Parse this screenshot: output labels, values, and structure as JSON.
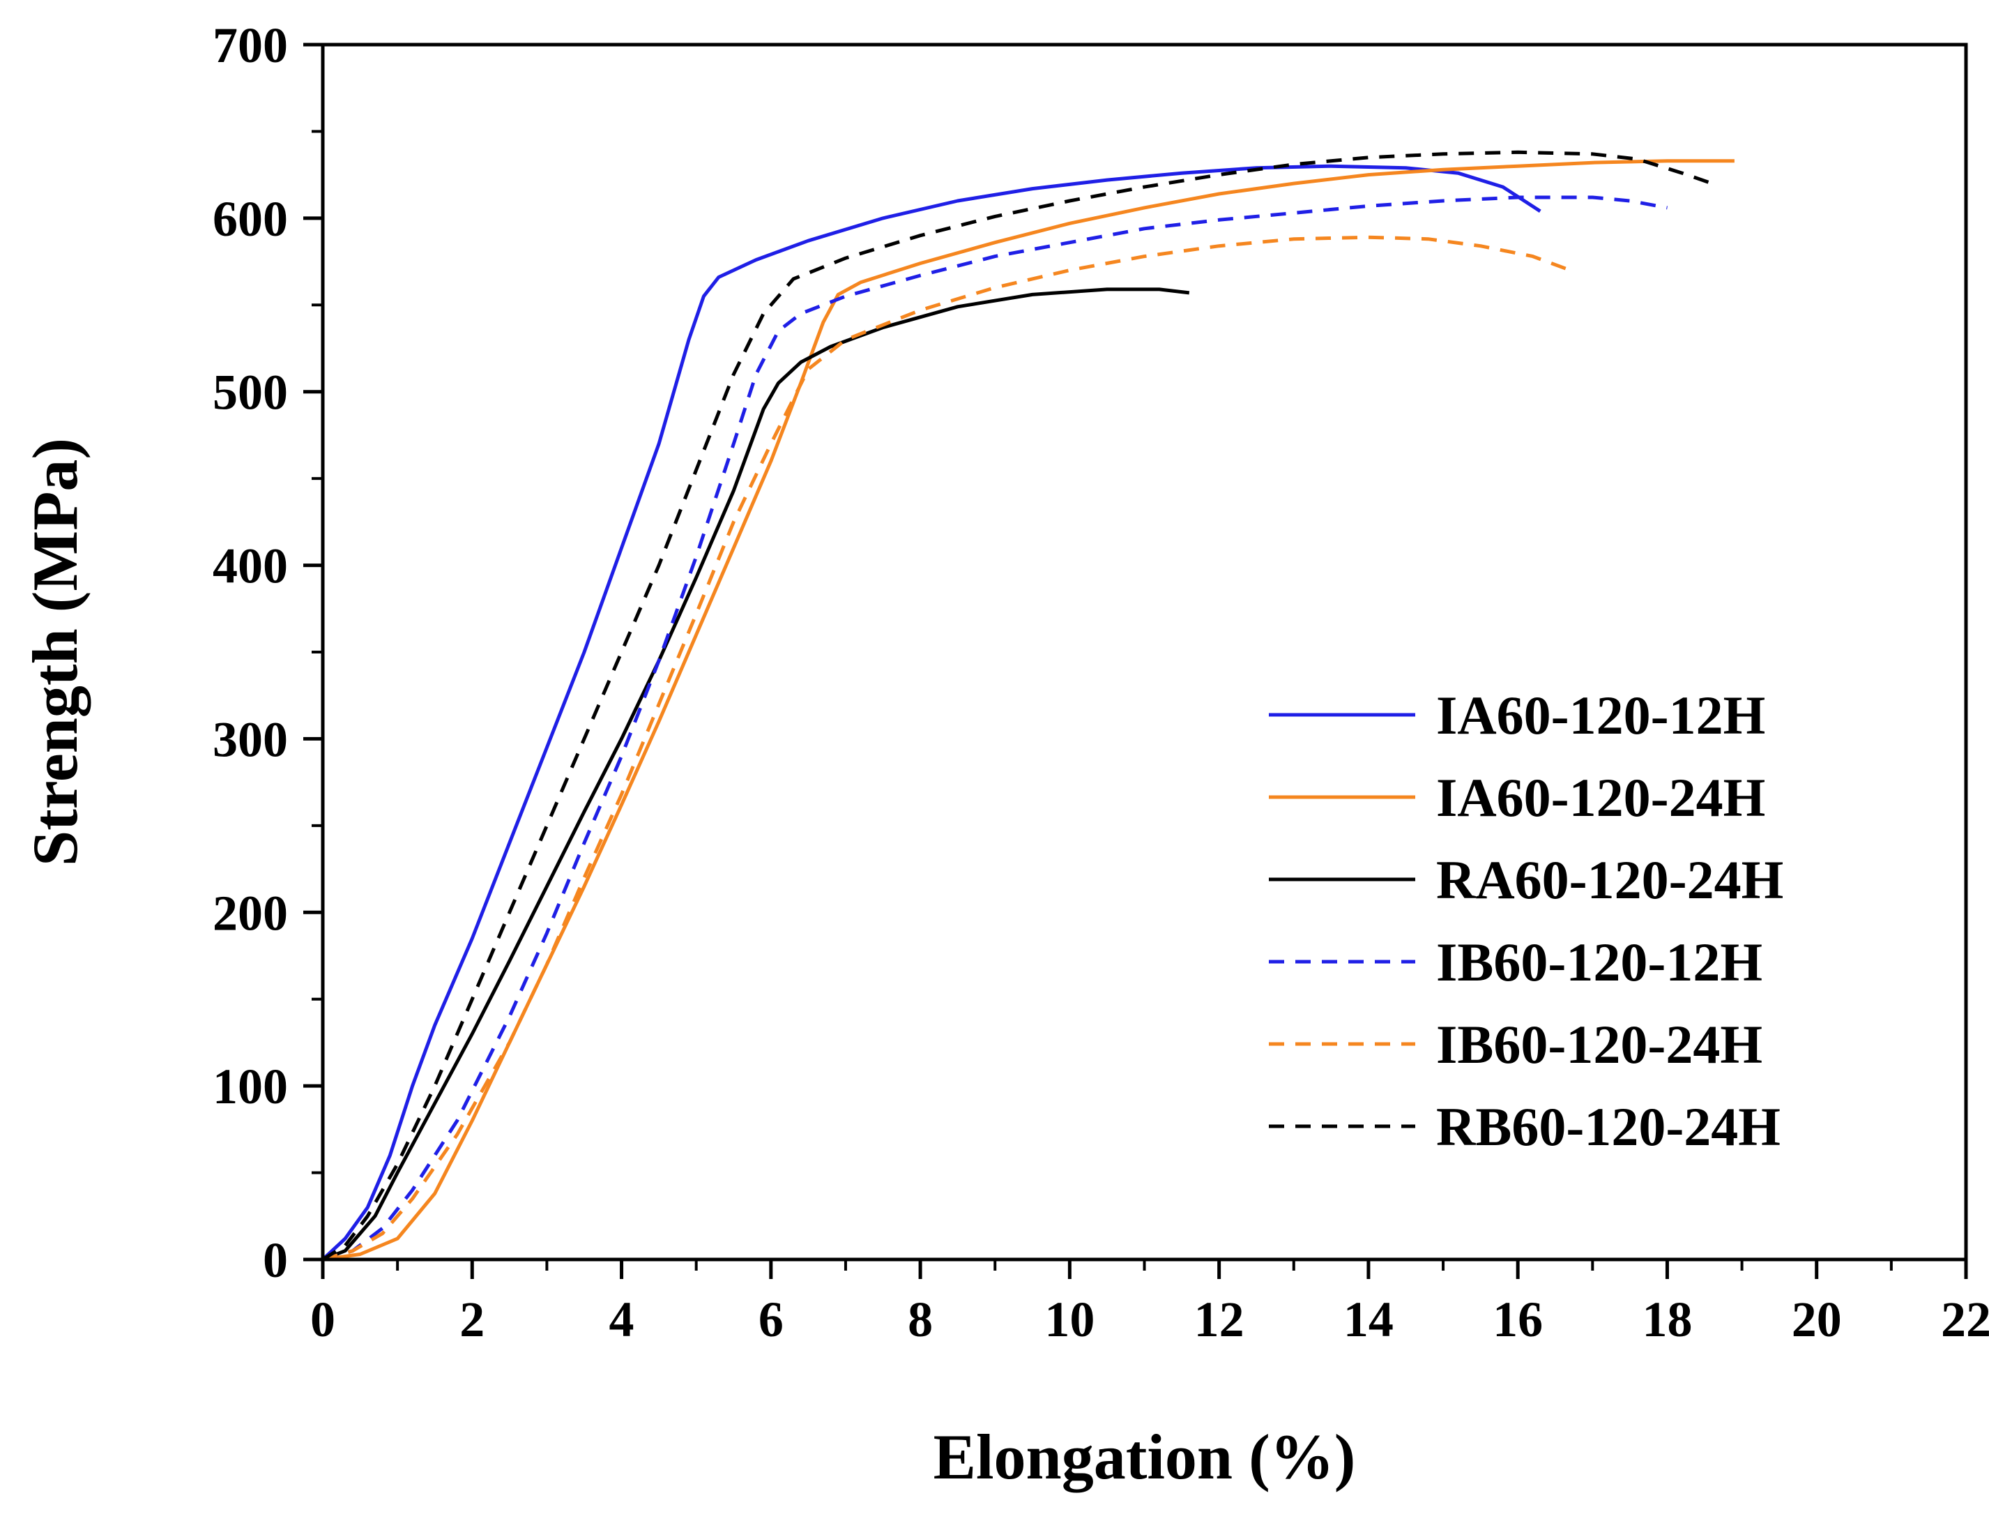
{
  "chart_data": {
    "type": "line",
    "title": "",
    "xlabel": "Elongation (%)",
    "ylabel": "Strength (MPa)",
    "xlim": [
      0,
      22
    ],
    "ylim": [
      0,
      700
    ],
    "x_ticks": [
      0,
      2,
      4,
      6,
      8,
      10,
      12,
      14,
      16,
      18,
      20,
      22
    ],
    "y_ticks": [
      0,
      100,
      200,
      300,
      400,
      500,
      600,
      700
    ],
    "x_tick_labels": [
      "0",
      "2",
      "4",
      "6",
      "8",
      "10",
      "12",
      "14",
      "16",
      "18",
      "20",
      "22"
    ],
    "y_tick_labels": [
      "0",
      "100",
      "200",
      "300",
      "400",
      "500",
      "600",
      "700"
    ],
    "grid": false,
    "legend_position": "right",
    "series": [
      {
        "name": "IA60-120-12H",
        "color": "#1f1fe6",
        "dash": "solid",
        "points": [
          [
            0,
            0
          ],
          [
            0.3,
            12
          ],
          [
            0.6,
            30
          ],
          [
            0.9,
            60
          ],
          [
            1.2,
            100
          ],
          [
            1.5,
            135
          ],
          [
            2.0,
            185
          ],
          [
            2.5,
            240
          ],
          [
            3.0,
            295
          ],
          [
            3.5,
            350
          ],
          [
            4.0,
            410
          ],
          [
            4.5,
            470
          ],
          [
            4.9,
            530
          ],
          [
            5.1,
            555
          ],
          [
            5.3,
            566
          ],
          [
            5.8,
            576
          ],
          [
            6.5,
            587
          ],
          [
            7.5,
            600
          ],
          [
            8.5,
            610
          ],
          [
            9.5,
            617
          ],
          [
            10.5,
            622
          ],
          [
            11.5,
            626
          ],
          [
            12.5,
            629
          ],
          [
            13.5,
            630
          ],
          [
            14.5,
            629
          ],
          [
            15.2,
            626
          ],
          [
            15.8,
            618
          ],
          [
            16.3,
            604
          ]
        ]
      },
      {
        "name": "IA60-120-24H",
        "color": "#f5861f",
        "dash": "solid",
        "points": [
          [
            0,
            0
          ],
          [
            0.5,
            3
          ],
          [
            1.0,
            12
          ],
          [
            1.5,
            38
          ],
          [
            2.0,
            80
          ],
          [
            2.5,
            125
          ],
          [
            3.0,
            170
          ],
          [
            3.5,
            215
          ],
          [
            4.0,
            262
          ],
          [
            4.5,
            310
          ],
          [
            5.0,
            360
          ],
          [
            5.5,
            410
          ],
          [
            6.0,
            460
          ],
          [
            6.4,
            505
          ],
          [
            6.7,
            540
          ],
          [
            6.9,
            556
          ],
          [
            7.2,
            563
          ],
          [
            8.0,
            574
          ],
          [
            9.0,
            586
          ],
          [
            10.0,
            597
          ],
          [
            11.0,
            606
          ],
          [
            12.0,
            614
          ],
          [
            13.0,
            620
          ],
          [
            14.0,
            625
          ],
          [
            15.0,
            628
          ],
          [
            16.0,
            630
          ],
          [
            17.0,
            632
          ],
          [
            18.0,
            633
          ],
          [
            18.9,
            633
          ]
        ]
      },
      {
        "name": "RA60-120-24H",
        "color": "#000000",
        "dash": "solid",
        "points": [
          [
            0,
            0
          ],
          [
            0.3,
            5
          ],
          [
            0.7,
            25
          ],
          [
            1.0,
            50
          ],
          [
            1.5,
            90
          ],
          [
            2.0,
            130
          ],
          [
            2.5,
            172
          ],
          [
            3.0,
            215
          ],
          [
            3.5,
            258
          ],
          [
            4.0,
            300
          ],
          [
            4.5,
            345
          ],
          [
            5.0,
            393
          ],
          [
            5.5,
            443
          ],
          [
            5.9,
            490
          ],
          [
            6.1,
            505
          ],
          [
            6.4,
            517
          ],
          [
            6.8,
            526
          ],
          [
            7.5,
            537
          ],
          [
            8.5,
            549
          ],
          [
            9.5,
            556
          ],
          [
            10.5,
            559
          ],
          [
            11.2,
            559
          ],
          [
            11.6,
            557
          ]
        ]
      },
      {
        "name": "IB60-120-12H",
        "color": "#1f1fe6",
        "dash": "dashed",
        "points": [
          [
            0,
            0
          ],
          [
            0.4,
            5
          ],
          [
            0.8,
            18
          ],
          [
            1.2,
            40
          ],
          [
            1.8,
            80
          ],
          [
            2.5,
            140
          ],
          [
            3.0,
            188
          ],
          [
            3.5,
            240
          ],
          [
            4.0,
            290
          ],
          [
            4.5,
            345
          ],
          [
            5.0,
            405
          ],
          [
            5.5,
            470
          ],
          [
            5.8,
            510
          ],
          [
            6.1,
            535
          ],
          [
            6.4,
            545
          ],
          [
            7.0,
            555
          ],
          [
            8.0,
            567
          ],
          [
            9.0,
            578
          ],
          [
            10.0,
            586
          ],
          [
            11.0,
            594
          ],
          [
            12.0,
            599
          ],
          [
            13.0,
            603
          ],
          [
            14.0,
            607
          ],
          [
            15.0,
            610
          ],
          [
            16.0,
            612
          ],
          [
            17.0,
            612
          ],
          [
            17.5,
            610
          ],
          [
            18.0,
            606
          ]
        ]
      },
      {
        "name": "IB60-120-24H",
        "color": "#f5861f",
        "dash": "dashed",
        "points": [
          [
            0,
            0
          ],
          [
            0.4,
            5
          ],
          [
            0.8,
            15
          ],
          [
            1.2,
            35
          ],
          [
            1.8,
            72
          ],
          [
            2.5,
            125
          ],
          [
            3.0,
            170
          ],
          [
            3.5,
            220
          ],
          [
            4.0,
            268
          ],
          [
            4.5,
            320
          ],
          [
            5.0,
            372
          ],
          [
            5.5,
            425
          ],
          [
            6.0,
            470
          ],
          [
            6.5,
            513
          ],
          [
            7.0,
            530
          ],
          [
            8.0,
            547
          ],
          [
            9.0,
            560
          ],
          [
            10.0,
            570
          ],
          [
            11.0,
            578
          ],
          [
            12.0,
            584
          ],
          [
            13.0,
            588
          ],
          [
            14.0,
            589
          ],
          [
            14.8,
            588
          ],
          [
            15.5,
            584
          ],
          [
            16.2,
            578
          ],
          [
            16.7,
            570
          ]
        ]
      },
      {
        "name": "RB60-120-24H",
        "color": "#000000",
        "dash": "dashed",
        "points": [
          [
            0,
            0
          ],
          [
            0.3,
            8
          ],
          [
            0.6,
            25
          ],
          [
            1.0,
            55
          ],
          [
            1.5,
            100
          ],
          [
            2.0,
            150
          ],
          [
            2.5,
            200
          ],
          [
            3.0,
            250
          ],
          [
            3.5,
            300
          ],
          [
            4.0,
            350
          ],
          [
            4.5,
            400
          ],
          [
            5.0,
            455
          ],
          [
            5.5,
            510
          ],
          [
            5.9,
            545
          ],
          [
            6.3,
            565
          ],
          [
            7.0,
            577
          ],
          [
            8.0,
            590
          ],
          [
            9.0,
            601
          ],
          [
            10.0,
            610
          ],
          [
            11.0,
            618
          ],
          [
            12.0,
            625
          ],
          [
            13.0,
            631
          ],
          [
            14.0,
            635
          ],
          [
            15.0,
            637
          ],
          [
            16.0,
            638
          ],
          [
            17.0,
            637
          ],
          [
            17.6,
            634
          ],
          [
            18.2,
            626
          ],
          [
            18.6,
            620
          ]
        ]
      }
    ]
  }
}
